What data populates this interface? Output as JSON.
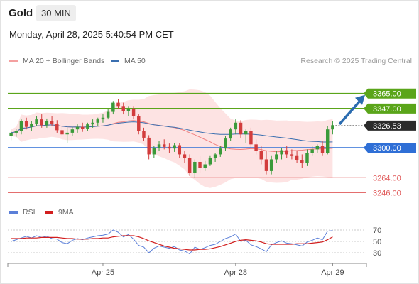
{
  "header": {
    "symbol": "Gold",
    "timeframe": "30 MIN",
    "datetime": "Monday, April 28, 2025 5:40:54 PM CET"
  },
  "legend": {
    "ma20_label": "MA 20 + Bollinger Bands",
    "ma50_label": "MA 50",
    "source": "Research © 2025 Trading Central",
    "rsi_label": "RSI",
    "ma9_label": "9MA"
  },
  "colors": {
    "ma20": "#f08080",
    "bollinger_fill": "#fde3e3",
    "ma50": "#3a6fb0",
    "up_candle": "#3a9a3a",
    "down_candle": "#d23c3c",
    "resistance": "#5aa51a",
    "pivot": "#2f6fd6",
    "support": "#e05a5a",
    "current_price_box": "#2b2b2b",
    "forecast_arrow": "#2b6cb0",
    "rsi": "#5b7fd8",
    "rsi_ma": "#d21e1e"
  },
  "chart_data": [
    {
      "type": "candlestick",
      "title": "Gold",
      "ylim": [
        3237,
        3392
      ],
      "x_ticks": [
        "Apr 25",
        "Apr 28",
        "Apr 29"
      ],
      "current_price": "3326.53",
      "levels": [
        {
          "value": "3365.00",
          "kind": "resistance"
        },
        {
          "value": "3347.00",
          "kind": "resistance"
        },
        {
          "value": "3300.00",
          "kind": "pivot"
        },
        {
          "value": "3264.00",
          "kind": "support"
        },
        {
          "value": "3246.00",
          "kind": "support"
        }
      ],
      "forecast": {
        "from": 3326.5,
        "to": 3365,
        "direction": "up"
      },
      "candles": [
        [
          3314,
          3320,
          3309,
          3318
        ],
        [
          3318,
          3323,
          3313,
          3320
        ],
        [
          3320,
          3334,
          3316,
          3332
        ],
        [
          3332,
          3336,
          3322,
          3325
        ],
        [
          3325,
          3332,
          3320,
          3329
        ],
        [
          3329,
          3338,
          3326,
          3334
        ],
        [
          3334,
          3340,
          3324,
          3327
        ],
        [
          3327,
          3335,
          3324,
          3332
        ],
        [
          3332,
          3338,
          3326,
          3329
        ],
        [
          3329,
          3333,
          3318,
          3321
        ],
        [
          3321,
          3326,
          3314,
          3316
        ],
        [
          3316,
          3324,
          3306,
          3318
        ],
        [
          3318,
          3325,
          3314,
          3322
        ],
        [
          3322,
          3328,
          3318,
          3325
        ],
        [
          3325,
          3330,
          3319,
          3323
        ],
        [
          3323,
          3330,
          3320,
          3328
        ],
        [
          3328,
          3334,
          3324,
          3330
        ],
        [
          3330,
          3336,
          3326,
          3334
        ],
        [
          3334,
          3340,
          3330,
          3336
        ],
        [
          3336,
          3346,
          3334,
          3343
        ],
        [
          3343,
          3356,
          3340,
          3354
        ],
        [
          3354,
          3358,
          3347,
          3350
        ],
        [
          3350,
          3354,
          3340,
          3344
        ],
        [
          3344,
          3350,
          3338,
          3347
        ],
        [
          3347,
          3350,
          3334,
          3338
        ],
        [
          3338,
          3340,
          3316,
          3320
        ],
        [
          3320,
          3324,
          3308,
          3312
        ],
        [
          3312,
          3315,
          3286,
          3292
        ],
        [
          3292,
          3302,
          3288,
          3300
        ],
        [
          3300,
          3308,
          3296,
          3304
        ],
        [
          3304,
          3310,
          3298,
          3301
        ],
        [
          3301,
          3305,
          3294,
          3299
        ],
        [
          3299,
          3306,
          3295,
          3303
        ],
        [
          3303,
          3306,
          3288,
          3292
        ],
        [
          3292,
          3296,
          3282,
          3288
        ],
        [
          3288,
          3292,
          3266,
          3270
        ],
        [
          3270,
          3286,
          3264,
          3283
        ],
        [
          3283,
          3290,
          3270,
          3276
        ],
        [
          3276,
          3284,
          3272,
          3280
        ],
        [
          3280,
          3290,
          3278,
          3288
        ],
        [
          3288,
          3294,
          3283,
          3292
        ],
        [
          3292,
          3302,
          3289,
          3299
        ],
        [
          3299,
          3314,
          3296,
          3311
        ],
        [
          3311,
          3324,
          3308,
          3322
        ],
        [
          3322,
          3334,
          3316,
          3330
        ],
        [
          3330,
          3333,
          3312,
          3316
        ],
        [
          3316,
          3322,
          3306,
          3320
        ],
        [
          3320,
          3324,
          3300,
          3304
        ],
        [
          3304,
          3310,
          3292,
          3296
        ],
        [
          3296,
          3302,
          3280,
          3286
        ],
        [
          3286,
          3296,
          3268,
          3272
        ],
        [
          3272,
          3290,
          3268,
          3286
        ],
        [
          3286,
          3296,
          3282,
          3292
        ],
        [
          3292,
          3300,
          3286,
          3297
        ],
        [
          3297,
          3302,
          3288,
          3292
        ],
        [
          3292,
          3298,
          3286,
          3290
        ],
        [
          3290,
          3296,
          3282,
          3285
        ],
        [
          3285,
          3292,
          3276,
          3282
        ],
        [
          3282,
          3298,
          3278,
          3294
        ],
        [
          3294,
          3302,
          3290,
          3298
        ],
        [
          3298,
          3304,
          3294,
          3302
        ],
        [
          3302,
          3308,
          3290,
          3294
        ],
        [
          3294,
          3326,
          3292,
          3322
        ],
        [
          3322,
          3332,
          3316,
          3327
        ]
      ]
    },
    {
      "type": "line",
      "title": "RSI",
      "ylim": [
        20,
        80
      ],
      "y_ticks": [
        70,
        50,
        30
      ],
      "series": [
        {
          "name": "RSI",
          "values": [
            50,
            53,
            56,
            59,
            56,
            60,
            57,
            59,
            55,
            54,
            48,
            46,
            52,
            55,
            53,
            56,
            58,
            60,
            61,
            63,
            70,
            66,
            58,
            62,
            54,
            43,
            40,
            30,
            38,
            42,
            40,
            38,
            41,
            35,
            33,
            28,
            40,
            36,
            39,
            43,
            45,
            50,
            55,
            58,
            63,
            50,
            52,
            44,
            41,
            37,
            32,
            44,
            48,
            51,
            47,
            46,
            44,
            42,
            49,
            52,
            56,
            53,
            68,
            69
          ]
        },
        {
          "name": "9MA",
          "values": [
            55,
            55,
            55,
            56,
            56,
            56,
            57,
            57,
            57,
            57,
            56,
            55,
            55,
            54,
            54,
            54,
            55,
            55,
            56,
            56,
            58,
            59,
            60,
            60,
            60,
            58,
            55,
            51,
            48,
            45,
            42,
            40,
            38,
            37,
            36,
            35,
            35,
            36,
            36,
            37,
            39,
            41,
            44,
            47,
            50,
            52,
            53,
            52,
            51,
            49,
            46,
            45,
            45,
            45,
            45,
            45,
            46,
            46,
            46,
            47,
            48,
            49,
            53,
            58
          ]
        }
      ]
    }
  ]
}
